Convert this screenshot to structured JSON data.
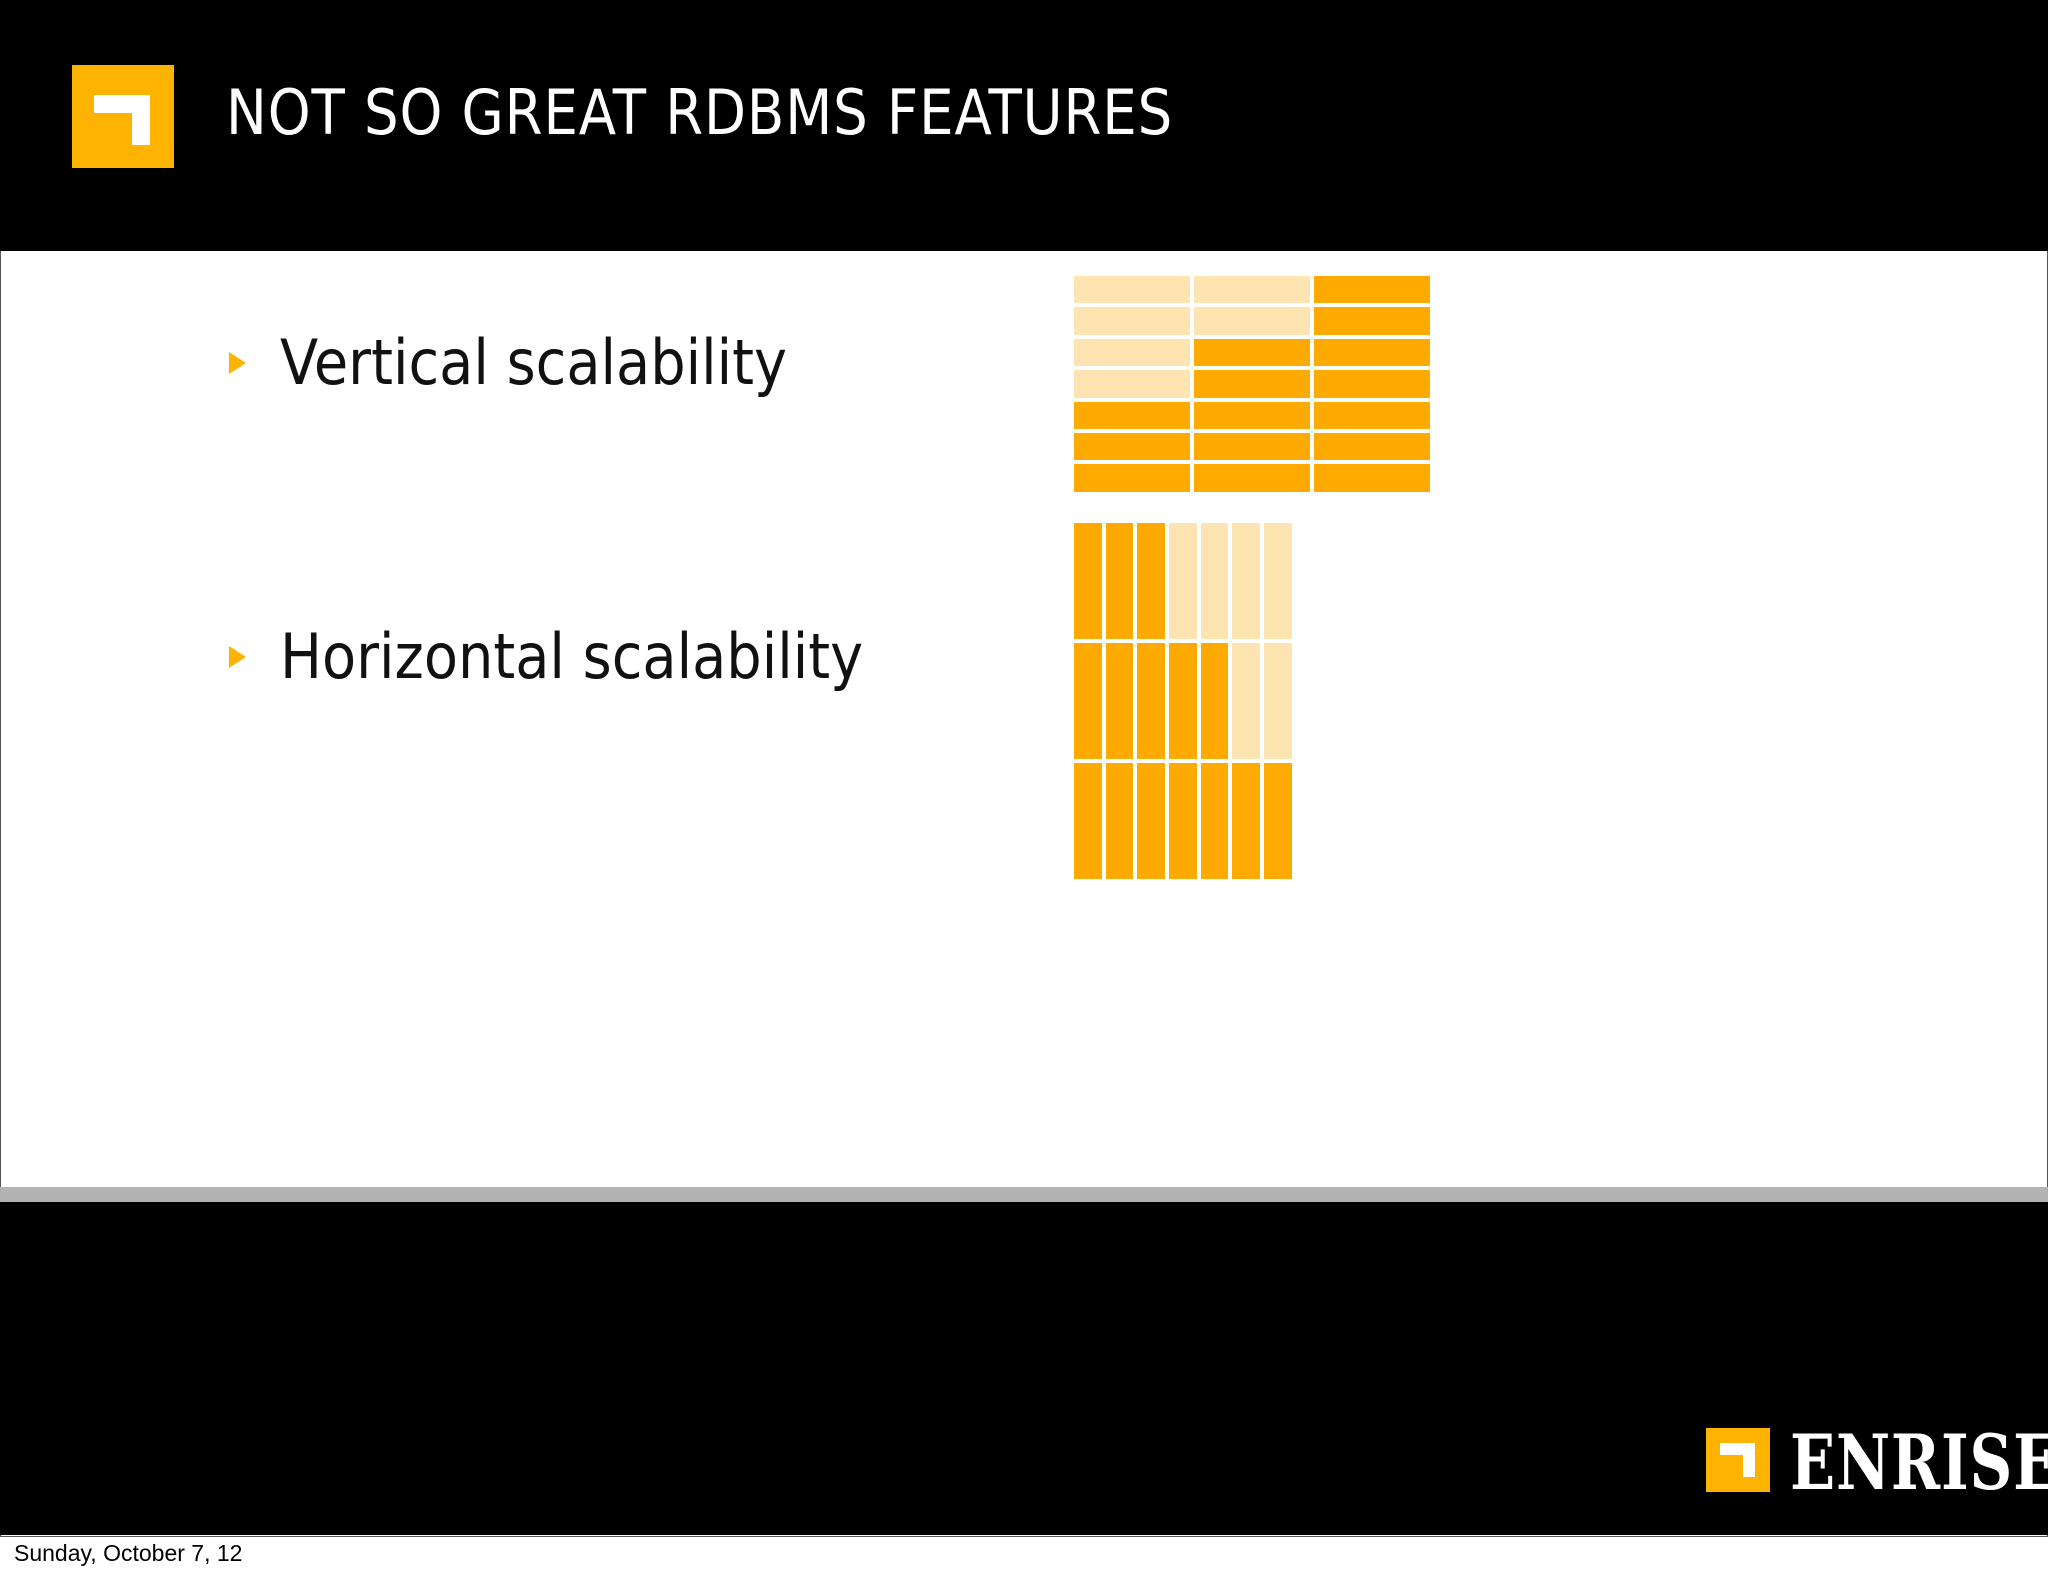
{
  "slide": {
    "title": "NOT SO GREAT RDBMS FEATURES",
    "bullets": [
      {
        "label": "Vertical scalability"
      },
      {
        "label": "Horizontal scalability"
      }
    ],
    "brand": "ENRISE",
    "date": "Sunday, October 7, 12"
  },
  "colors": {
    "accent": "#fdb300",
    "cell_filled": "#ffaa00",
    "cell_light": "#fde4b0"
  },
  "vertical_grid": {
    "columns": 3,
    "rows": 7,
    "light_cells": [
      [
        0,
        0
      ],
      [
        0,
        1
      ],
      [
        0,
        2
      ],
      [
        0,
        3
      ],
      [
        1,
        0
      ],
      [
        1,
        1
      ]
    ]
  },
  "horizontal_grid": {
    "columns": 7,
    "rows": 3,
    "light_cells": [
      [
        3,
        0
      ],
      [
        4,
        0
      ],
      [
        5,
        0
      ],
      [
        6,
        0
      ],
      [
        5,
        1
      ],
      [
        6,
        1
      ]
    ]
  }
}
